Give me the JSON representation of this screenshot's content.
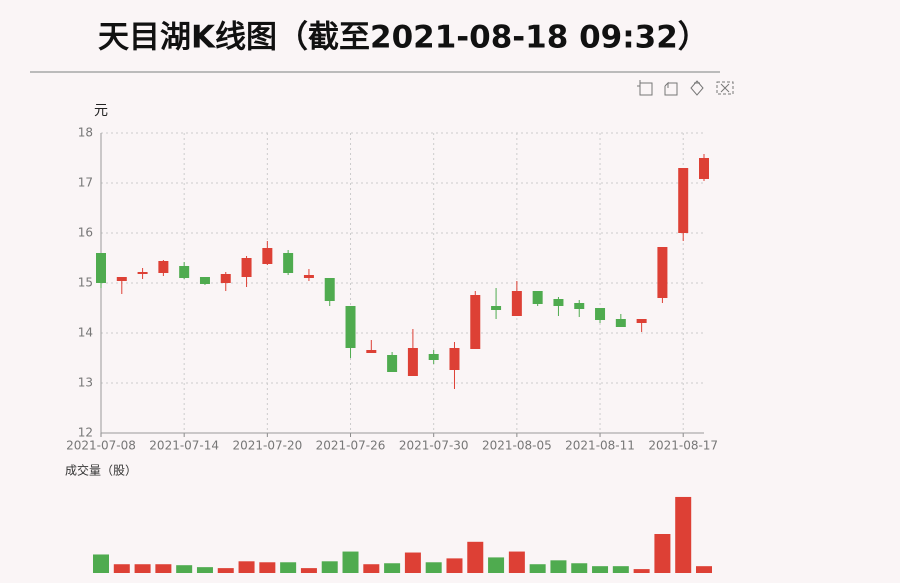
{
  "title": "天目湖K线图（截至2021-08-18 09:32）",
  "chart_data": [
    {
      "type": "candlestick",
      "y_label": "元",
      "categories": [
        "2021-07-08",
        null,
        null,
        null,
        "2021-07-14",
        null,
        null,
        null,
        "2021-07-20",
        null,
        null,
        null,
        "2021-07-26",
        null,
        null,
        null,
        "2021-07-30",
        null,
        null,
        null,
        "2021-08-05",
        null,
        null,
        null,
        "2021-08-11",
        null,
        null,
        null,
        "2021-08-17",
        null
      ],
      "open": [
        15.6,
        15.04,
        15.18,
        15.2,
        15.34,
        15.12,
        15.0,
        15.12,
        15.38,
        15.6,
        15.1,
        15.1,
        14.54,
        13.6,
        13.56,
        13.14,
        13.58,
        13.26,
        13.68,
        14.54,
        14.34,
        14.84,
        14.68,
        14.6,
        14.5,
        14.28,
        14.2,
        14.7,
        16.0,
        17.08
      ],
      "high": [
        15.6,
        15.12,
        15.3,
        15.46,
        15.42,
        15.12,
        15.22,
        15.54,
        15.84,
        15.66,
        15.28,
        15.1,
        14.54,
        13.86,
        13.62,
        14.08,
        13.66,
        13.82,
        14.84,
        14.9,
        15.04,
        14.84,
        14.72,
        14.66,
        14.5,
        14.38,
        14.28,
        15.72,
        17.3,
        17.58
      ],
      "low": [
        14.9,
        14.78,
        15.08,
        15.14,
        15.08,
        14.96,
        14.84,
        14.92,
        15.36,
        15.16,
        15.04,
        14.54,
        13.5,
        13.6,
        13.22,
        13.14,
        13.38,
        12.88,
        13.68,
        14.28,
        14.34,
        14.54,
        14.34,
        14.32,
        14.2,
        14.12,
        14.02,
        14.6,
        15.84,
        17.04
      ],
      "close": [
        15.0,
        15.12,
        15.22,
        15.44,
        15.1,
        14.98,
        15.18,
        15.5,
        15.7,
        15.2,
        15.16,
        14.64,
        13.7,
        13.66,
        13.22,
        13.7,
        13.46,
        13.7,
        14.76,
        14.46,
        14.84,
        14.58,
        14.54,
        14.48,
        14.26,
        14.12,
        14.28,
        15.72,
        17.3,
        17.5
      ],
      "up_color": "#dd4035",
      "down_color": "#4fab4f",
      "ylim": [
        12,
        18
      ],
      "yticks": [
        12,
        13,
        14,
        15,
        16,
        17,
        18
      ],
      "grid": true
    },
    {
      "type": "bar",
      "title": "成交量（股）",
      "values": [
        19,
        9,
        9,
        9,
        8,
        6,
        5,
        12,
        11,
        11,
        5,
        12,
        22,
        9,
        10,
        21,
        11,
        15,
        32,
        16,
        22,
        9,
        13,
        10,
        7,
        7,
        4,
        40,
        78,
        7
      ],
      "ylim": [
        0,
        80
      ]
    }
  ]
}
